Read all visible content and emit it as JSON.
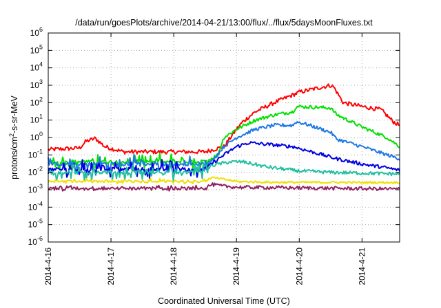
{
  "chart_data": {
    "type": "line",
    "title": "/data/run/goesPlots/archive/2014-04-21/13:00/flux/../flux/5daysMoonFluxes.txt",
    "xlabel": "Coordinated Universal Time (UTC)",
    "ylabel": "protons/cm2-s-sr-MeV",
    "ylabel_parts": {
      "pre": "protons/cm",
      "sup": "2",
      "post": "-s-sr-MeV"
    },
    "yscale": "log",
    "ylim_exp": [
      -6,
      6
    ],
    "y_ticks": [
      {
        "base": "10",
        "exp": "6"
      },
      {
        "base": "10",
        "exp": "5"
      },
      {
        "base": "10",
        "exp": "4"
      },
      {
        "base": "10",
        "exp": "3"
      },
      {
        "base": "10",
        "exp": "2"
      },
      {
        "base": "10",
        "exp": "1"
      },
      {
        "base": "10",
        "exp": "0"
      },
      {
        "base": "10",
        "exp": "-1"
      },
      {
        "base": "10",
        "exp": "-2"
      },
      {
        "base": "10",
        "exp": "-3"
      },
      {
        "base": "10",
        "exp": "-4"
      },
      {
        "base": "10",
        "exp": "-5"
      },
      {
        "base": "10",
        "exp": "-6"
      }
    ],
    "x_range_days": [
      0,
      5.6
    ],
    "x_ticks": [
      "2014-4-16",
      "2014-4-17",
      "2014-4-18",
      "2014-4-19",
      "2014-4-20",
      "2014-4-21"
    ],
    "grid": true,
    "series": [
      {
        "color": "#ff0000",
        "keyframes": [
          [
            0.0,
            0.2
          ],
          [
            0.5,
            0.25
          ],
          [
            0.6,
            0.6
          ],
          [
            0.75,
            0.9
          ],
          [
            0.9,
            0.3
          ],
          [
            1.2,
            0.15
          ],
          [
            2.5,
            0.15
          ],
          [
            2.8,
            0.3
          ],
          [
            3.0,
            3
          ],
          [
            3.1,
            8
          ],
          [
            3.3,
            30
          ],
          [
            3.6,
            100
          ],
          [
            4.0,
            400
          ],
          [
            4.5,
            1000
          ],
          [
            4.55,
            800
          ],
          [
            4.7,
            100
          ],
          [
            5.0,
            60
          ],
          [
            5.3,
            40
          ],
          [
            5.5,
            8
          ],
          [
            5.6,
            5
          ]
        ],
        "noise": 0.12,
        "spike": 0
      },
      {
        "color": "#00e000",
        "keyframes": [
          [
            0.0,
            0.04
          ],
          [
            0.5,
            0.04
          ],
          [
            2.5,
            0.04
          ],
          [
            2.55,
            0.05
          ],
          [
            2.7,
            0.1
          ],
          [
            2.8,
            1
          ],
          [
            3.0,
            3
          ],
          [
            3.3,
            10
          ],
          [
            3.6,
            20
          ],
          [
            3.9,
            30
          ],
          [
            3.95,
            60
          ],
          [
            4.5,
            50
          ],
          [
            4.6,
            20
          ],
          [
            5.0,
            4
          ],
          [
            5.4,
            1
          ],
          [
            5.6,
            0.3
          ]
        ],
        "noise": 0.1,
        "spike": 0.45
      },
      {
        "color": "#1e78e6",
        "keyframes": [
          [
            0.0,
            0.03
          ],
          [
            2.5,
            0.03
          ],
          [
            2.6,
            0.04
          ],
          [
            2.8,
            0.3
          ],
          [
            3.0,
            1
          ],
          [
            3.3,
            3
          ],
          [
            3.6,
            5
          ],
          [
            3.9,
            5
          ],
          [
            3.95,
            8
          ],
          [
            4.1,
            6
          ],
          [
            4.5,
            2
          ],
          [
            4.6,
            0.8
          ],
          [
            5.0,
            0.3
          ],
          [
            5.4,
            0.1
          ],
          [
            5.6,
            0.06
          ]
        ],
        "noise": 0.1,
        "spike": 0.5
      },
      {
        "color": "#0000e0",
        "keyframes": [
          [
            0.0,
            0.015
          ],
          [
            2.5,
            0.015
          ],
          [
            2.6,
            0.03
          ],
          [
            2.8,
            0.1
          ],
          [
            3.0,
            0.3
          ],
          [
            3.2,
            0.5
          ],
          [
            3.5,
            0.4
          ],
          [
            3.9,
            0.3
          ],
          [
            4.2,
            0.15
          ],
          [
            4.6,
            0.06
          ],
          [
            5.0,
            0.03
          ],
          [
            5.4,
            0.018
          ],
          [
            5.6,
            0.013
          ]
        ],
        "noise": 0.1,
        "spike": 0.5
      },
      {
        "color": "#20c0a0",
        "keyframes": [
          [
            0.0,
            0.01
          ],
          [
            2.5,
            0.01
          ],
          [
            2.6,
            0.025
          ],
          [
            2.9,
            0.04
          ],
          [
            3.1,
            0.04
          ],
          [
            3.5,
            0.02
          ],
          [
            4.0,
            0.012
          ],
          [
            4.5,
            0.01
          ],
          [
            5.0,
            0.009
          ],
          [
            5.6,
            0.008
          ]
        ],
        "noise": 0.1,
        "spike": 0.5
      },
      {
        "color": "#f0e000",
        "keyframes": [
          [
            0.0,
            0.003
          ],
          [
            2.5,
            0.003
          ],
          [
            2.6,
            0.005
          ],
          [
            2.8,
            0.004
          ],
          [
            3.0,
            0.003
          ],
          [
            3.5,
            0.0027
          ],
          [
            5.6,
            0.0026
          ]
        ],
        "noise": 0.06,
        "spike": 0.15
      },
      {
        "color": "#902060",
        "keyframes": [
          [
            0.0,
            0.0012
          ],
          [
            2.5,
            0.0012
          ],
          [
            2.6,
            0.002
          ],
          [
            2.8,
            0.0016
          ],
          [
            3.0,
            0.0014
          ],
          [
            5.6,
            0.0011
          ]
        ],
        "noise": 0.1,
        "spike": 0.08
      }
    ]
  }
}
